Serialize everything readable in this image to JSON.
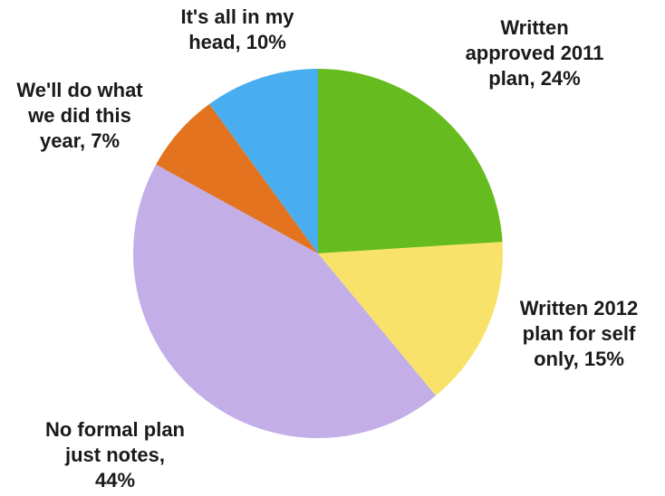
{
  "chart_data": {
    "type": "pie",
    "title": "",
    "start_angle_deg": 0,
    "direction": "clockwise",
    "slices": [
      {
        "name": "Written approved 2011 plan",
        "value": 24,
        "color": "#66BB1E",
        "label_lines": [
          "Written",
          "approved 2011",
          "plan, 24%"
        ]
      },
      {
        "name": "Written 2012 plan for self only",
        "value": 15,
        "color": "#F8E26A",
        "label_lines": [
          "Written 2012",
          "plan for self",
          "only, 15%"
        ]
      },
      {
        "name": "No formal plan just notes",
        "value": 44,
        "color": "#C4AEE8",
        "label_lines": [
          "No formal plan",
          "just notes,",
          "44%"
        ]
      },
      {
        "name": "We'll do what we did this year",
        "value": 7,
        "color": "#E3731E",
        "label_lines": [
          "We'll do what",
          "we did this",
          "year, 7%"
        ]
      },
      {
        "name": "It's all in my head",
        "value": 10,
        "color": "#49AEEF",
        "label_lines": [
          "It's all in my",
          "head, 10%"
        ]
      }
    ]
  }
}
